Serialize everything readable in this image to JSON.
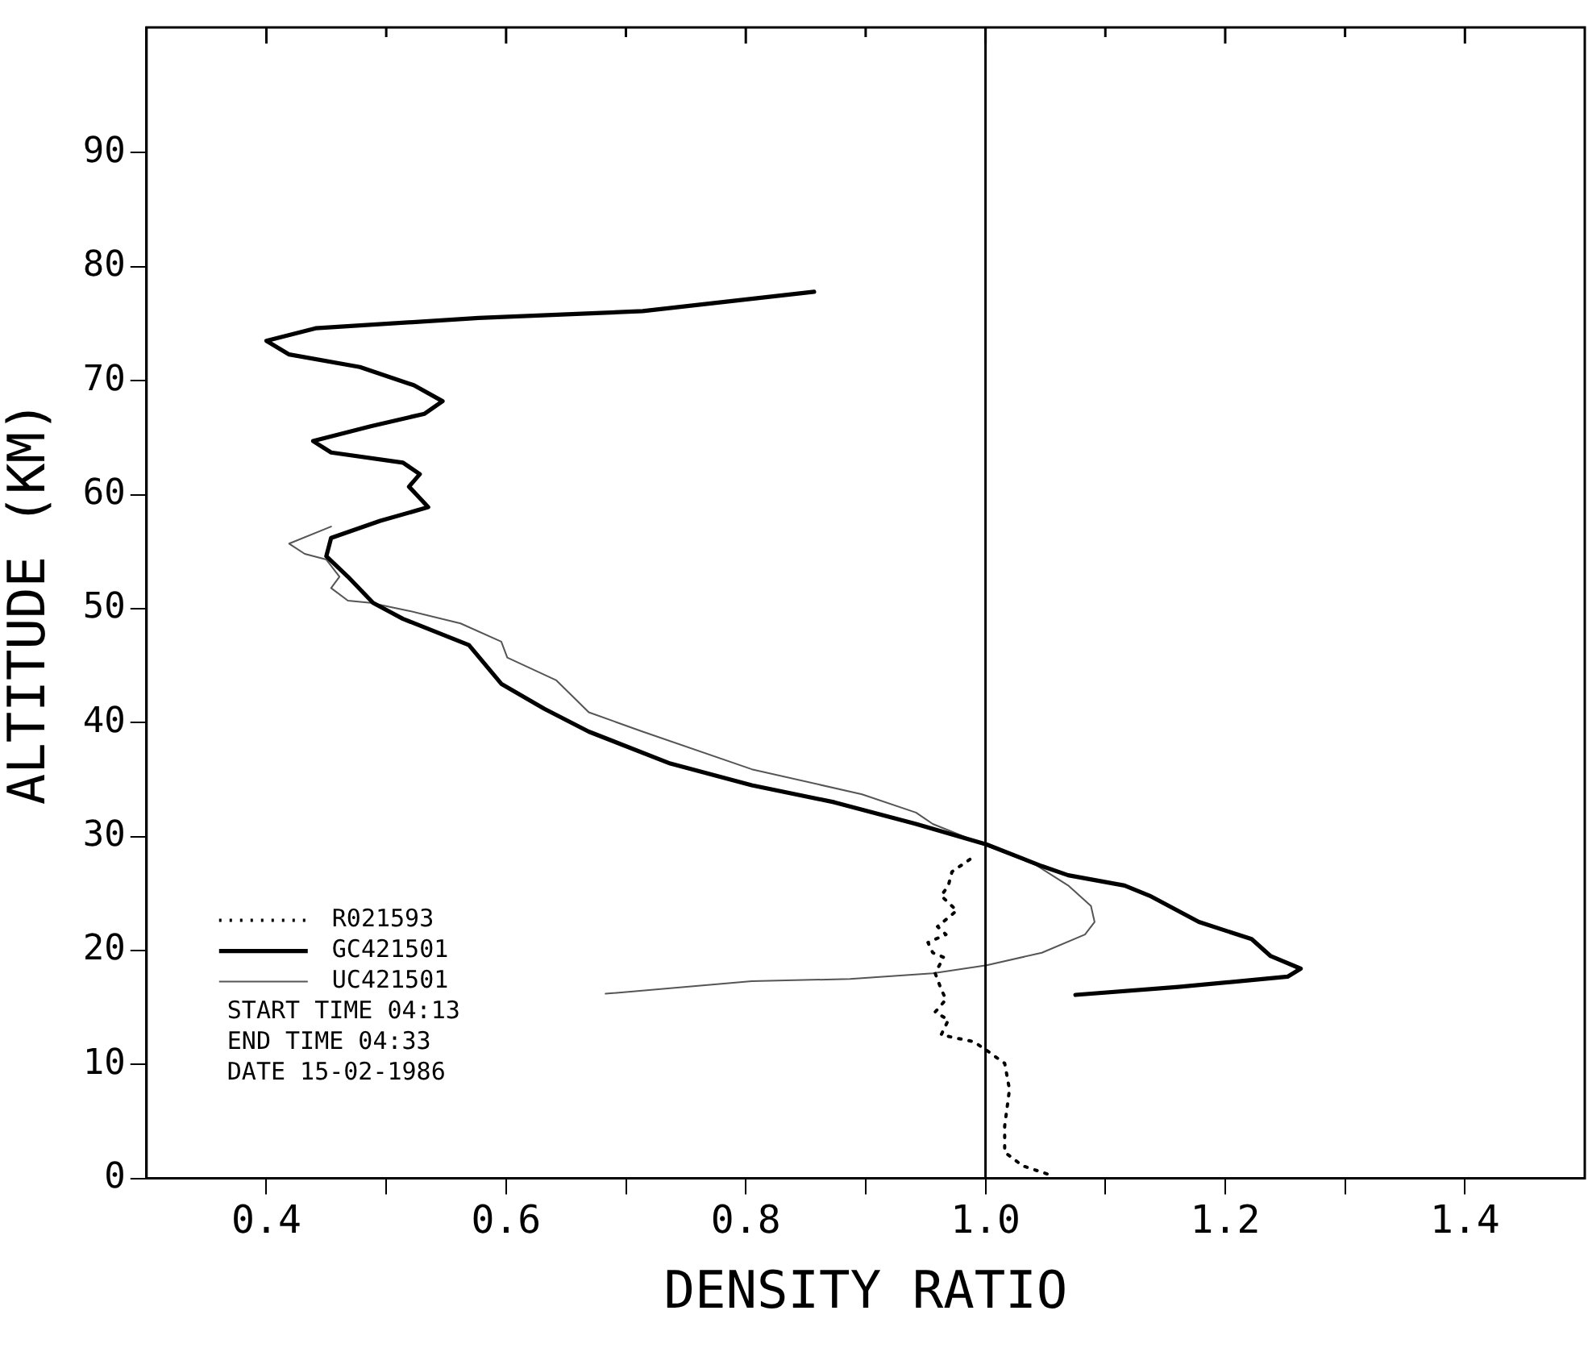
{
  "chart_data": {
    "type": "line",
    "xlabel": "DENSITY RATIO",
    "ylabel": "ALTITUDE (KM)",
    "xlim": [
      0.3,
      1.5
    ],
    "ylim": [
      0,
      101
    ],
    "xticks": [
      {
        "value": 0.4,
        "label": "0.4"
      },
      {
        "value": 0.5,
        "label": null
      },
      {
        "value": 0.6,
        "label": "0.6"
      },
      {
        "value": 0.7,
        "label": null
      },
      {
        "value": 0.8,
        "label": "0.8"
      },
      {
        "value": 0.9,
        "label": null
      },
      {
        "value": 1.0,
        "label": "1.0"
      },
      {
        "value": 1.1,
        "label": null
      },
      {
        "value": 1.2,
        "label": "1.2"
      },
      {
        "value": 1.3,
        "label": null
      },
      {
        "value": 1.4,
        "label": "1.4"
      }
    ],
    "yticks": [
      0,
      10,
      20,
      30,
      40,
      50,
      60,
      70,
      80,
      90
    ],
    "grid": false,
    "legend": "bottom left",
    "marker": "none",
    "ref_lines": [
      {
        "axis": "x",
        "value": 1.0,
        "color": "#000000"
      }
    ],
    "annotations": [
      "START TIME 04:13",
      "END TIME 04:33",
      "DATE 15-02-1986"
    ],
    "series": [
      {
        "name": "R021593",
        "color": "#000000",
        "line_style": "dotted",
        "x": [
          0.987,
          0.972,
          0.969,
          0.963,
          0.976,
          0.96,
          0.967,
          0.952,
          0.956,
          0.965,
          0.958,
          0.963,
          0.967,
          0.958,
          0.969,
          0.963,
          0.976,
          0.99,
          1.0,
          1.016,
          1.02,
          1.016,
          1.016,
          1.031,
          1.054
        ],
        "values": [
          28.0,
          26.9,
          25.7,
          24.8,
          23.5,
          22.1,
          21.4,
          20.7,
          19.8,
          19.4,
          18.0,
          16.6,
          15.7,
          14.6,
          13.9,
          12.6,
          12.3,
          12.0,
          11.3,
          10.1,
          7.8,
          4.6,
          2.3,
          1.1,
          0.3
        ]
      },
      {
        "name": "GC421501",
        "color": "#000000",
        "line_style": "solid",
        "x": [
          0.857,
          0.714,
          0.577,
          0.441,
          0.4,
          0.419,
          0.478,
          0.523,
          0.547,
          0.532,
          0.487,
          0.439,
          0.454,
          0.514,
          0.528,
          0.519,
          0.535,
          0.495,
          0.454,
          0.45,
          0.468,
          0.489,
          0.514,
          0.569,
          0.596,
          0.632,
          0.669,
          0.737,
          0.805,
          0.874,
          0.942,
          1.001,
          1.047,
          1.069,
          1.116,
          1.137,
          1.178,
          1.222,
          1.238,
          1.263,
          1.252,
          1.161,
          1.075
        ],
        "values": [
          77.8,
          76.1,
          75.5,
          74.6,
          73.5,
          72.3,
          71.2,
          69.6,
          68.2,
          67.1,
          66.0,
          64.7,
          63.7,
          62.8,
          61.8,
          60.7,
          58.9,
          57.7,
          56.2,
          54.6,
          52.8,
          50.5,
          49.1,
          46.8,
          43.4,
          41.2,
          39.2,
          36.4,
          34.5,
          33.0,
          31.1,
          29.3,
          27.4,
          26.6,
          25.7,
          24.8,
          22.5,
          21.0,
          19.5,
          18.4,
          17.7,
          16.8,
          16.1
        ]
      },
      {
        "name": "UC421501",
        "color": "#555555",
        "line_style": "solid",
        "x": [
          0.454,
          0.419,
          0.432,
          0.45,
          0.461,
          0.454,
          0.468,
          0.487,
          0.519,
          0.562,
          0.596,
          0.601,
          0.642,
          0.669,
          0.714,
          0.805,
          0.897,
          0.942,
          0.956,
          1.001,
          1.042,
          1.069,
          1.088,
          1.091,
          1.083,
          1.047,
          1.001,
          0.956,
          0.887,
          0.805,
          0.683
        ],
        "values": [
          57.2,
          55.7,
          54.8,
          54.3,
          52.8,
          51.8,
          50.7,
          50.5,
          49.8,
          48.7,
          47.1,
          45.7,
          43.7,
          40.9,
          39.2,
          35.9,
          33.7,
          32.1,
          31.1,
          29.2,
          27.5,
          25.7,
          23.9,
          22.5,
          21.4,
          19.8,
          18.7,
          18.0,
          17.5,
          17.3,
          16.2
        ]
      }
    ]
  }
}
